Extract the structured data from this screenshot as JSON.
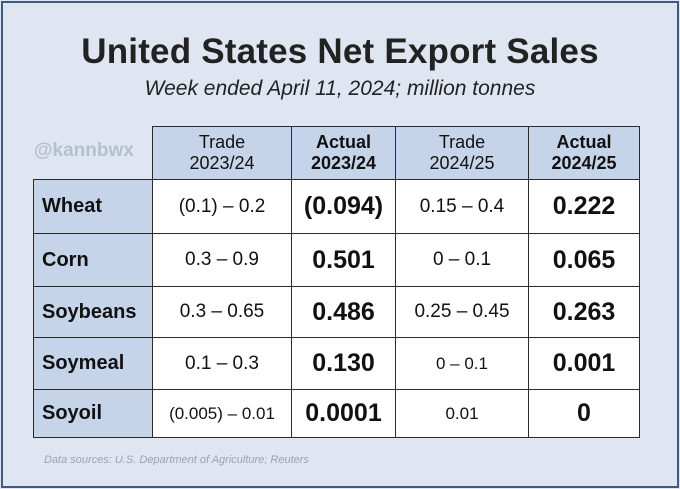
{
  "title": "United States Net Export Sales",
  "subtitle": "Week ended April 11, 2024; million tonnes",
  "watermark": "@kannbwx",
  "columns": [
    {
      "line1": "Trade",
      "line2": "2023/24"
    },
    {
      "line1": "Actual",
      "line2": "2023/24"
    },
    {
      "line1": "Trade",
      "line2": "2024/25"
    },
    {
      "line1": "Actual",
      "line2": "2024/25"
    }
  ],
  "rows": [
    {
      "label": "Wheat",
      "trade_2324": "(0.1) – 0.2",
      "actual_2324": "(0.094)",
      "trade_2425": "0.15 – 0.4",
      "actual_2425": "0.222"
    },
    {
      "label": "Corn",
      "trade_2324": "0.3 – 0.9",
      "actual_2324": "0.501",
      "trade_2425": "0 – 0.1",
      "actual_2425": "0.065"
    },
    {
      "label": "Soybeans",
      "trade_2324": "0.3 – 0.65",
      "actual_2324": "0.486",
      "trade_2425": "0.25 – 0.45",
      "actual_2425": "0.263"
    },
    {
      "label": "Soymeal",
      "trade_2324": "0.1 – 0.3",
      "actual_2324": "0.130",
      "trade_2425": "0 – 0.1",
      "actual_2425": "0.001"
    },
    {
      "label": "Soyoil",
      "trade_2324": "(0.005) – 0.01",
      "actual_2324": "0.0001",
      "trade_2425": "0.01",
      "actual_2425": "0"
    }
  ],
  "source": "Data sources: U.S. Department of Agriculture; Reuters",
  "colors": {
    "background": "#dfe6f1",
    "header_fill": "#c6d4ea",
    "border": "#3e5a87",
    "watermark": "#b4bfd0"
  }
}
